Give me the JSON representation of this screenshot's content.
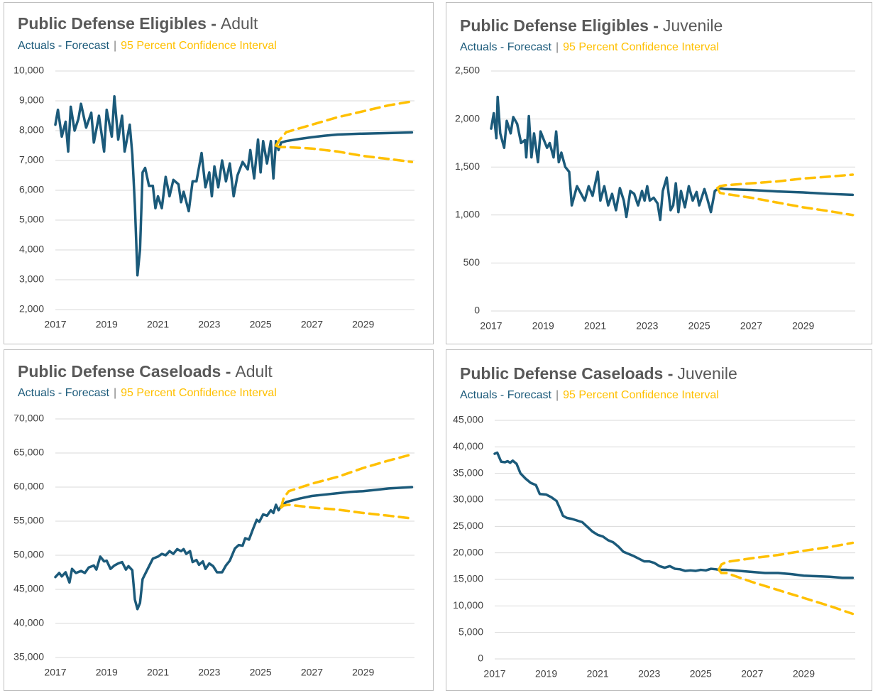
{
  "chart_data": [
    {
      "type": "line",
      "title": "Public Defense Eligibles -",
      "group": "Adult",
      "legend_separator": "|",
      "xlim": [
        2017,
        2031
      ],
      "xticks": [
        2017,
        2019,
        2021,
        2023,
        2025,
        2027,
        2029
      ],
      "ylim": [
        2000,
        10000
      ],
      "yticks": [
        {
          "value": 2000,
          "label": "2,000"
        },
        {
          "value": 3000,
          "label": "3,000"
        },
        {
          "value": 4000,
          "label": "4,000"
        },
        {
          "value": 5000,
          "label": "5,000"
        },
        {
          "value": 6000,
          "label": "6,000"
        },
        {
          "value": 7000,
          "label": "7,000"
        },
        {
          "value": 8000,
          "label": "8,000"
        },
        {
          "value": 9000,
          "label": "9,000"
        },
        {
          "value": 10000,
          "label": "10,000"
        }
      ],
      "grid": true,
      "series": [
        {
          "name": "Actuals - Forecast",
          "color": "#1b5a7a",
          "x": [
            2017.0,
            2017.1,
            2017.25,
            2017.4,
            2017.5,
            2017.6,
            2017.75,
            2017.9,
            2018.0,
            2018.2,
            2018.4,
            2018.5,
            2018.7,
            2018.9,
            2019.0,
            2019.2,
            2019.3,
            2019.45,
            2019.6,
            2019.7,
            2019.9,
            2020.0,
            2020.1,
            2020.2,
            2020.3,
            2020.4,
            2020.5,
            2020.65,
            2020.8,
            2020.9,
            2021.0,
            2021.15,
            2021.3,
            2021.45,
            2021.6,
            2021.8,
            2021.9,
            2022.0,
            2022.2,
            2022.35,
            2022.5,
            2022.7,
            2022.85,
            2023.0,
            2023.1,
            2023.2,
            2023.35,
            2023.5,
            2023.65,
            2023.8,
            2023.95,
            2024.1,
            2024.3,
            2024.5,
            2024.6,
            2024.75,
            2024.9,
            2025.0,
            2025.1,
            2025.25,
            2025.4,
            2025.5,
            2025.6,
            2025.7,
            2025.8,
            2026.0,
            2026.5,
            2027.0,
            2027.5,
            2028.0,
            2029.0,
            2030.0,
            2030.9
          ],
          "values": [
            8200,
            8700,
            7800,
            8300,
            7300,
            8800,
            8000,
            8400,
            8900,
            8100,
            8600,
            7600,
            8500,
            7300,
            8700,
            7800,
            9150,
            7700,
            8500,
            7300,
            8200,
            7200,
            5500,
            3150,
            4000,
            6600,
            6750,
            6150,
            6150,
            5400,
            5800,
            5400,
            6450,
            5800,
            6350,
            6200,
            5600,
            5950,
            5300,
            6300,
            6300,
            7250,
            6100,
            6600,
            5800,
            6800,
            6100,
            7000,
            6300,
            6900,
            5800,
            6500,
            6950,
            6700,
            7350,
            6400,
            7700,
            6600,
            7650,
            6900,
            7650,
            6400,
            7650,
            7350,
            7600,
            7650,
            7720,
            7780,
            7830,
            7870,
            7900,
            7920,
            7940
          ]
        },
        {
          "name": "95 Percent Confidence Interval",
          "color": "#ffc000",
          "x": [
            2025.6,
            2025.75,
            2026.0,
            2027.0,
            2028.0,
            2029.0,
            2030.0,
            2030.9
          ],
          "upper": [
            7500,
            7700,
            7950,
            8200,
            8450,
            8650,
            8850,
            8980
          ],
          "lower": [
            7500,
            7450,
            7450,
            7400,
            7300,
            7150,
            7050,
            6950
          ]
        }
      ]
    },
    {
      "type": "line",
      "title": "Public Defense Eligibles -",
      "group": "Juvenile",
      "legend_separator": "|",
      "xlim": [
        2017,
        2031
      ],
      "xticks": [
        2017,
        2019,
        2021,
        2023,
        2025,
        2027,
        2029
      ],
      "ylim": [
        0,
        2500
      ],
      "yticks": [
        0,
        500,
        {
          "value": 1000,
          "label": "1,000"
        },
        {
          "value": 1500,
          "label": "1,500"
        },
        {
          "value": 2000,
          "label": "2,000"
        },
        {
          "value": 2500,
          "label": "2,500"
        }
      ],
      "grid": true,
      "series": [
        {
          "name": "Actuals - Forecast",
          "color": "#1b5a7a",
          "x": [
            2017.0,
            2017.1,
            2017.2,
            2017.25,
            2017.35,
            2017.5,
            2017.6,
            2017.75,
            2017.85,
            2018.0,
            2018.15,
            2018.3,
            2018.35,
            2018.45,
            2018.55,
            2018.65,
            2018.8,
            2018.9,
            2019.0,
            2019.15,
            2019.25,
            2019.4,
            2019.5,
            2019.6,
            2019.7,
            2019.85,
            2020.0,
            2020.1,
            2020.3,
            2020.5,
            2020.6,
            2020.75,
            2020.9,
            2021.1,
            2021.2,
            2021.35,
            2021.5,
            2021.65,
            2021.8,
            2021.95,
            2022.1,
            2022.2,
            2022.35,
            2022.5,
            2022.65,
            2022.8,
            2022.9,
            2023.0,
            2023.1,
            2023.25,
            2023.4,
            2023.5,
            2023.6,
            2023.75,
            2023.9,
            2024.0,
            2024.1,
            2024.2,
            2024.3,
            2024.45,
            2024.6,
            2024.75,
            2024.9,
            2025.0,
            2025.2,
            2025.3,
            2025.45,
            2025.6,
            2025.75,
            2026.0,
            2027.0,
            2028.0,
            2029.0,
            2030.0,
            2030.9
          ],
          "values": [
            1900,
            2060,
            1800,
            2230,
            1850,
            1700,
            1980,
            1850,
            2020,
            1950,
            1750,
            1780,
            1600,
            2030,
            1600,
            1850,
            1550,
            1870,
            1800,
            1700,
            1750,
            1600,
            1870,
            1550,
            1650,
            1500,
            1450,
            1100,
            1300,
            1200,
            1150,
            1300,
            1200,
            1450,
            1150,
            1300,
            1100,
            1220,
            1050,
            1280,
            1150,
            980,
            1250,
            1220,
            1100,
            1250,
            1150,
            1300,
            1150,
            1180,
            1120,
            950,
            1250,
            1390,
            1050,
            1100,
            1330,
            1030,
            1250,
            1080,
            1300,
            1150,
            1240,
            1100,
            1270,
            1180,
            1030,
            1250,
            1280,
            1270,
            1260,
            1245,
            1235,
            1220,
            1210
          ]
        },
        {
          "name": "95 Percent Confidence Interval",
          "color": "#ffc000",
          "x": [
            2025.7,
            2025.8,
            2026.0,
            2027.0,
            2028.0,
            2029.0,
            2030.0,
            2030.9
          ],
          "upper": [
            1280,
            1300,
            1310,
            1330,
            1350,
            1380,
            1400,
            1420
          ],
          "lower": [
            1280,
            1230,
            1220,
            1180,
            1130,
            1080,
            1040,
            1000
          ]
        }
      ]
    },
    {
      "type": "line",
      "title": "Public Defense Caseloads -",
      "group": "Adult",
      "legend_separator": "|",
      "xlim": [
        2017,
        2031
      ],
      "xticks": [
        2017,
        2019,
        2021,
        2023,
        2025,
        2027,
        2029
      ],
      "ylim": [
        35000,
        70000
      ],
      "yticks": [
        {
          "value": 35000,
          "label": "35,000"
        },
        {
          "value": 40000,
          "label": "40,000"
        },
        {
          "value": 45000,
          "label": "45,000"
        },
        {
          "value": 50000,
          "label": "50,000"
        },
        {
          "value": 55000,
          "label": "55,000"
        },
        {
          "value": 60000,
          "label": "60,000"
        },
        {
          "value": 65000,
          "label": "65,000"
        },
        {
          "value": 70000,
          "label": "70,000"
        }
      ],
      "grid": true,
      "series": [
        {
          "name": "Actuals - Forecast",
          "color": "#1b5a7a",
          "x": [
            2017.0,
            2017.15,
            2017.25,
            2017.4,
            2017.55,
            2017.65,
            2017.8,
            2018.0,
            2018.15,
            2018.3,
            2018.5,
            2018.6,
            2018.75,
            2018.9,
            2019.0,
            2019.15,
            2019.3,
            2019.45,
            2019.6,
            2019.75,
            2019.85,
            2020.0,
            2020.1,
            2020.2,
            2020.3,
            2020.4,
            2020.6,
            2020.8,
            2021.0,
            2021.15,
            2021.3,
            2021.45,
            2021.6,
            2021.75,
            2021.9,
            2022.0,
            2022.1,
            2022.25,
            2022.35,
            2022.5,
            2022.6,
            2022.75,
            2022.85,
            2023.0,
            2023.15,
            2023.3,
            2023.5,
            2023.65,
            2023.8,
            2024.0,
            2024.15,
            2024.3,
            2024.4,
            2024.55,
            2024.7,
            2024.85,
            2024.95,
            2025.1,
            2025.25,
            2025.4,
            2025.5,
            2025.6,
            2025.7,
            2025.8,
            2026.0,
            2026.5,
            2027.0,
            2027.5,
            2028.0,
            2028.5,
            2029.0,
            2029.5,
            2030.0,
            2030.9
          ],
          "values": [
            46800,
            47400,
            46900,
            47500,
            46000,
            48000,
            47400,
            47700,
            47400,
            48200,
            48500,
            47900,
            49800,
            49100,
            49200,
            48000,
            48500,
            48800,
            49000,
            47900,
            48400,
            47800,
            43500,
            42100,
            43000,
            46500,
            48000,
            49500,
            49800,
            50200,
            50000,
            50600,
            50200,
            50900,
            50600,
            50900,
            50200,
            50600,
            49000,
            49300,
            48600,
            49100,
            48000,
            48800,
            48400,
            47500,
            47500,
            48500,
            49200,
            51000,
            51500,
            51400,
            52500,
            52300,
            53800,
            55200,
            54900,
            56000,
            55800,
            56600,
            56200,
            57400,
            56600,
            57200,
            57800,
            58300,
            58700,
            58900,
            59100,
            59300,
            59400,
            59600,
            59800,
            60000
          ]
        },
        {
          "name": "95 Percent Confidence Interval",
          "color": "#ffc000",
          "x": [
            2025.8,
            2025.9,
            2026.1,
            2027.0,
            2028.0,
            2029.0,
            2030.0,
            2030.9
          ],
          "upper": [
            57000,
            58400,
            59400,
            60500,
            61500,
            62800,
            63900,
            64800
          ],
          "lower": [
            57000,
            57300,
            57400,
            57000,
            56700,
            56200,
            55800,
            55400
          ]
        }
      ]
    },
    {
      "type": "line",
      "title": "Public Defense Caseloads -",
      "group": "Juvenile",
      "legend_separator": "|",
      "xlim": [
        2017,
        2031
      ],
      "xticks": [
        2017,
        2019,
        2021,
        2023,
        2025,
        2027,
        2029
      ],
      "ylim": [
        0,
        45000
      ],
      "yticks": [
        0,
        {
          "value": 5000,
          "label": "5,000"
        },
        {
          "value": 10000,
          "label": "10,000"
        },
        {
          "value": 15000,
          "label": "15,000"
        },
        {
          "value": 20000,
          "label": "20,000"
        },
        {
          "value": 25000,
          "label": "25,000"
        },
        {
          "value": 30000,
          "label": "30,000"
        },
        {
          "value": 35000,
          "label": "35,000"
        },
        {
          "value": 40000,
          "label": "40,000"
        },
        {
          "value": 45000,
          "label": "45,000"
        }
      ],
      "grid": true,
      "series": [
        {
          "name": "Actuals - Forecast",
          "color": "#1b5a7a",
          "x": [
            2017.0,
            2017.1,
            2017.25,
            2017.4,
            2017.5,
            2017.6,
            2017.7,
            2017.85,
            2018.0,
            2018.2,
            2018.4,
            2018.6,
            2018.75,
            2019.0,
            2019.2,
            2019.4,
            2019.55,
            2019.65,
            2019.8,
            2020.0,
            2020.2,
            2020.4,
            2020.6,
            2020.8,
            2021.0,
            2021.2,
            2021.4,
            2021.6,
            2021.8,
            2022.0,
            2022.2,
            2022.4,
            2022.6,
            2022.8,
            2023.0,
            2023.2,
            2023.4,
            2023.6,
            2023.8,
            2024.0,
            2024.2,
            2024.4,
            2024.6,
            2024.8,
            2025.0,
            2025.2,
            2025.4,
            2025.6,
            2025.7,
            2026.0,
            2026.5,
            2027.0,
            2027.5,
            2028.0,
            2028.5,
            2029.0,
            2029.5,
            2030.0,
            2030.5,
            2030.9
          ],
          "values": [
            38700,
            38900,
            37200,
            37100,
            37300,
            37000,
            37400,
            36800,
            35000,
            34000,
            33200,
            32800,
            31100,
            31000,
            30500,
            29800,
            28200,
            27000,
            26600,
            26400,
            26100,
            25800,
            24900,
            24000,
            23400,
            23100,
            22400,
            22000,
            21200,
            20200,
            19800,
            19400,
            18900,
            18400,
            18400,
            18100,
            17500,
            17200,
            17500,
            17000,
            16900,
            16600,
            16700,
            16600,
            16800,
            16700,
            17000,
            16900,
            16800,
            16800,
            16600,
            16400,
            16200,
            16200,
            16000,
            15700,
            15600,
            15500,
            15300,
            15300
          ]
        },
        {
          "name": "95 Percent Confidence Interval",
          "color": "#ffc000",
          "x": [
            2025.7,
            2025.8,
            2026.0,
            2027.0,
            2028.0,
            2029.0,
            2030.0,
            2030.9
          ],
          "upper": [
            16800,
            17800,
            18300,
            19000,
            19600,
            20400,
            21100,
            21900
          ],
          "lower": [
            16800,
            16200,
            16200,
            14500,
            13000,
            11500,
            10000,
            8500
          ]
        }
      ]
    }
  ]
}
